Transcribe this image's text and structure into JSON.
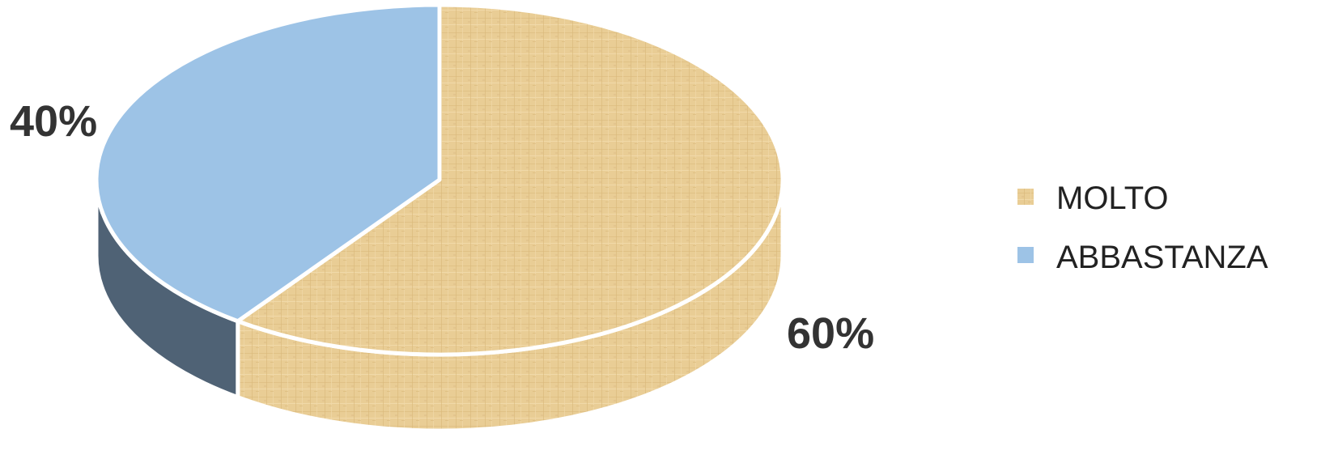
{
  "chart_data": {
    "type": "pie",
    "style": "3d",
    "categories": [
      "MOLTO",
      "ABBASTANZA"
    ],
    "values": [
      60,
      40
    ],
    "data_labels": [
      "60%",
      "40%"
    ],
    "legend_position": "right",
    "colors": {
      "MOLTO": "#e9cd95",
      "ABBASTANZA": "#9dc3e6",
      "ABBASTANZA_side": "#4f6275"
    },
    "title": ""
  }
}
